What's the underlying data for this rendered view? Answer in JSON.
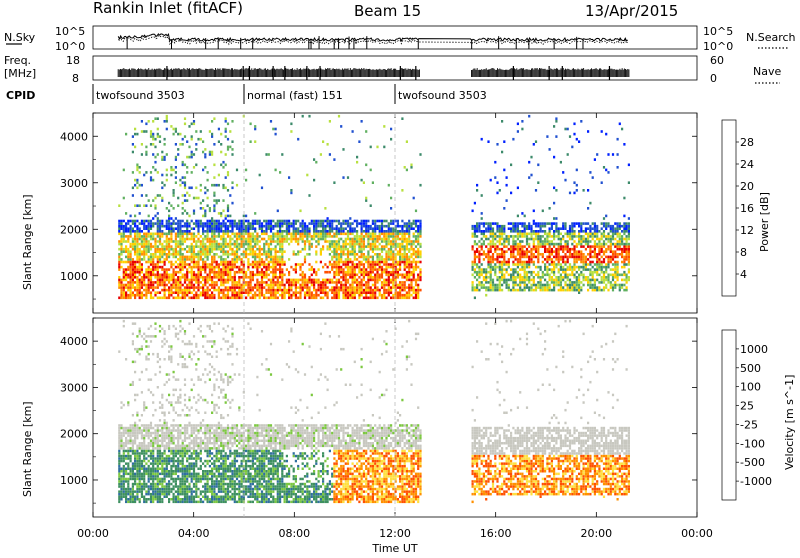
{
  "header": {
    "title": "Rankin Inlet (fitACF)",
    "beam": "Beam 15",
    "date": "13/Apr/2015"
  },
  "strips": {
    "nsky_label": "N.Sky",
    "nsearch_label": "N.Search",
    "nsky_ticks": [
      "10^5",
      "10^0"
    ],
    "nsearch_ticks": [
      "10^5",
      "10^0"
    ],
    "freq_label_1": "Freq.",
    "freq_label_2": "[MHz]",
    "freq_ticks": [
      "18",
      "8"
    ],
    "nave_label": "Nave",
    "nave_ticks": [
      "60",
      "0"
    ],
    "cpid_label": "CPID",
    "cpid_segments": [
      {
        "label": "twofsound 3503",
        "start_h": 0.0,
        "end_h": 6.0
      },
      {
        "label": "normal (fast) 151",
        "start_h": 6.0,
        "end_h": 12.0
      },
      {
        "label": "twofsound 3503",
        "start_h": 12.0,
        "end_h": 21.3
      }
    ],
    "data_gap_h": [
      13.0,
      15.0
    ]
  },
  "chart_data": [
    {
      "type": "heatmap",
      "panel": "power",
      "x_range_hours": [
        0,
        24
      ],
      "ylim": [
        200,
        4500
      ],
      "ylabel": "Slant Range [km]",
      "yticks": [
        1000,
        2000,
        3000,
        4000
      ],
      "colorbar": {
        "label": "Power [dB]",
        "ticks": [
          "28",
          "24",
          "20",
          "16",
          "12",
          "8",
          "4"
        ],
        "range": [
          0,
          32
        ]
      },
      "regions": [
        {
          "x": [
            1.0,
            12.9
          ],
          "y": [
            500,
            1900
          ],
          "value": "16-28 dB"
        },
        {
          "x": [
            1.0,
            12.9
          ],
          "y": [
            1900,
            2200
          ],
          "value": "4-12 dB"
        },
        {
          "x": [
            15.0,
            21.3
          ],
          "y": [
            700,
            2100
          ],
          "value": "12-28 dB"
        },
        {
          "x": [
            1.5,
            5.5
          ],
          "y": [
            2200,
            4400
          ],
          "value": "8-16 dB"
        }
      ]
    },
    {
      "type": "heatmap",
      "panel": "velocity",
      "x_range_hours": [
        0,
        24
      ],
      "ylim": [
        200,
        4500
      ],
      "ylabel": "Slant Range [km]",
      "yticks": [
        1000,
        2000,
        3000,
        4000
      ],
      "colorbar": {
        "label": "Velocity [m s^-1]",
        "ticks": [
          "1000",
          "500",
          "100",
          "25",
          "-25",
          "-100",
          "-500",
          "-1000"
        ],
        "range": [
          -1000,
          1000
        ]
      },
      "regions": [
        {
          "x": [
            1.0,
            12.9
          ],
          "y": [
            1600,
            2200
          ],
          "value": "-25 to 25"
        },
        {
          "x": [
            1.0,
            9.5
          ],
          "y": [
            500,
            1600
          ],
          "value": "100 to 500"
        },
        {
          "x": [
            9.5,
            12.9
          ],
          "y": [
            500,
            1500
          ],
          "value": "-100 to -500"
        },
        {
          "x": [
            15.0,
            21.3
          ],
          "y": [
            700,
            2100
          ],
          "value": "-25 to -500"
        }
      ]
    }
  ],
  "x_axis": {
    "label": "Time UT",
    "ticks": [
      "00:00",
      "04:00",
      "08:00",
      "12:00",
      "16:00",
      "20:00",
      "00:00"
    ],
    "ticks_h": [
      0,
      4,
      8,
      12,
      16,
      20,
      24
    ]
  },
  "colors": {
    "power_scale": [
      "#0020ff",
      "#2050d0",
      "#3c8a6a",
      "#60b060",
      "#b8e040",
      "#ffd000",
      "#ff9000",
      "#ff5000",
      "#e80000"
    ],
    "velocity_scale": [
      "#1f3fd0",
      "#2f6f9f",
      "#3e9060",
      "#7cc840",
      "#c8c8c0",
      "#ffe040",
      "#ff9000",
      "#ff5000",
      "#e00000"
    ]
  }
}
